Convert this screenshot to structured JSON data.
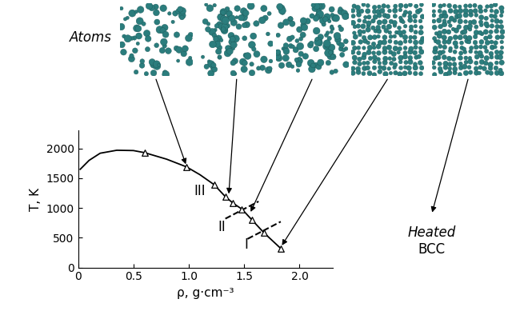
{
  "chart_data": {
    "type": "line",
    "xlabel": "ρ, g·cm⁻³",
    "ylabel": "T, K",
    "xlim": [
      0,
      2.3
    ],
    "ylim": [
      0,
      2300
    ],
    "xticks": [
      0,
      0.5,
      {
        "value": 1.0,
        "label": "1.0"
      },
      1.5,
      {
        "value": 2.0,
        "label": "2.0"
      }
    ],
    "yticks": [
      0,
      500,
      1000,
      1500,
      2000
    ],
    "series": [
      {
        "type": "line",
        "color": "#000000",
        "line_style": "solid",
        "x": [
          0.02,
          0.1,
          0.2,
          0.35,
          0.5,
          0.6,
          0.8,
          0.98,
          1.1,
          1.23,
          1.33,
          1.4,
          1.48,
          1.57,
          1.68,
          1.83
        ],
        "values": [
          1650,
          1800,
          1920,
          1970,
          1965,
          1930,
          1820,
          1690,
          1560,
          1390,
          1190,
          1080,
          980,
          800,
          580,
          320
        ]
      },
      {
        "type": "scatter",
        "color": "#000000",
        "marker": "triangle",
        "x": [
          0.6,
          0.98,
          1.23,
          1.33,
          1.4,
          1.48,
          1.57,
          1.68,
          1.83
        ],
        "values": [
          1930,
          1690,
          1390,
          1190,
          1080,
          980,
          800,
          580,
          320
        ]
      }
    ],
    "boundaries": [
      {
        "x": [
          1.33,
          1.63
        ],
        "y": [
          820,
          1110
        ],
        "line_style": "dashed"
      },
      {
        "x": [
          1.53,
          1.83
        ],
        "y": [
          480,
          770
        ],
        "line_style": "dashed"
      }
    ],
    "annotations": [
      {
        "text": "III",
        "x": 1.1,
        "y": 1280
      },
      {
        "text": "II",
        "x": 1.3,
        "y": 680
      },
      {
        "text": "I",
        "x": 1.52,
        "y": 380
      }
    ],
    "snapshots": [
      {
        "x": 0.98,
        "y": 1700
      },
      {
        "x": 1.36,
        "y": 1200
      },
      {
        "x": 1.55,
        "y": 900
      },
      {
        "x": 1.83,
        "y": 340
      }
    ],
    "atoms_label": "Atoms",
    "side_text": [
      "Heated",
      "BCC"
    ]
  }
}
